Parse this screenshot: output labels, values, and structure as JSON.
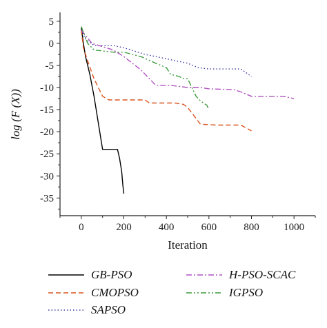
{
  "chart_data": {
    "type": "line",
    "xlabel": "Iteration",
    "ylabel": "log (F (X))",
    "xlim": [
      -100,
      1100
    ],
    "ylim": [
      -39,
      7
    ],
    "xticks": [
      0,
      200,
      400,
      600,
      800,
      1000
    ],
    "yticks": [
      5,
      0,
      -5,
      -10,
      -15,
      -20,
      -25,
      -30,
      -35
    ],
    "grid": false,
    "legend_position": "bottom",
    "series": [
      {
        "name": "GB-PSO",
        "color": "#000000",
        "dash": "solid",
        "points": [
          [
            0,
            3.5
          ],
          [
            10,
            0
          ],
          [
            20,
            -3
          ],
          [
            40,
            -7
          ],
          [
            60,
            -12
          ],
          [
            80,
            -18
          ],
          [
            100,
            -24
          ],
          [
            120,
            -24
          ],
          [
            140,
            -24
          ],
          [
            160,
            -24
          ],
          [
            170,
            -24
          ],
          [
            180,
            -26
          ],
          [
            190,
            -29
          ],
          [
            195,
            -32
          ],
          [
            200,
            -34
          ]
        ]
      },
      {
        "name": "CMOPSO",
        "color": "#d9531e",
        "dash": "dashed",
        "points": [
          [
            0,
            3
          ],
          [
            10,
            -1
          ],
          [
            30,
            -4
          ],
          [
            60,
            -8
          ],
          [
            100,
            -12
          ],
          [
            130,
            -12.8
          ],
          [
            200,
            -12.8
          ],
          [
            300,
            -12.8
          ],
          [
            320,
            -13.5
          ],
          [
            440,
            -13.5
          ],
          [
            480,
            -13.8
          ],
          [
            500,
            -14.5
          ],
          [
            540,
            -17
          ],
          [
            560,
            -18.3
          ],
          [
            640,
            -18.5
          ],
          [
            750,
            -18.5
          ],
          [
            800,
            -19.8
          ]
        ]
      },
      {
        "name": "SAPSO",
        "color": "#3a3aa0",
        "dash": "dotted",
        "points": [
          [
            0,
            3
          ],
          [
            20,
            1
          ],
          [
            60,
            -0.5
          ],
          [
            150,
            -0.5
          ],
          [
            200,
            -1
          ],
          [
            300,
            -2.5
          ],
          [
            400,
            -3.5
          ],
          [
            500,
            -4.5
          ],
          [
            550,
            -5.5
          ],
          [
            600,
            -5.8
          ],
          [
            650,
            -5.8
          ],
          [
            750,
            -5.8
          ],
          [
            800,
            -7.5
          ]
        ]
      },
      {
        "name": "H-PSO-SCAC",
        "color": "#b050c0",
        "dash": "dashdot",
        "points": [
          [
            0,
            3
          ],
          [
            50,
            0
          ],
          [
            150,
            -1.5
          ],
          [
            200,
            -3
          ],
          [
            280,
            -6
          ],
          [
            320,
            -8
          ],
          [
            350,
            -9.5
          ],
          [
            420,
            -9.5
          ],
          [
            500,
            -10
          ],
          [
            560,
            -10
          ],
          [
            600,
            -10.3
          ],
          [
            720,
            -10.5
          ],
          [
            750,
            -11
          ],
          [
            800,
            -12
          ],
          [
            950,
            -12
          ],
          [
            1000,
            -12.5
          ]
        ]
      },
      {
        "name": "IGPSO",
        "color": "#3c9a3c",
        "dash": "dashdotdot",
        "points": [
          [
            0,
            3.8
          ],
          [
            30,
            0
          ],
          [
            60,
            -1.5
          ],
          [
            150,
            -2
          ],
          [
            200,
            -2
          ],
          [
            280,
            -3
          ],
          [
            350,
            -4.5
          ],
          [
            400,
            -5.5
          ],
          [
            420,
            -7
          ],
          [
            460,
            -7.5
          ],
          [
            480,
            -8
          ],
          [
            500,
            -8
          ],
          [
            520,
            -10
          ],
          [
            540,
            -12
          ],
          [
            560,
            -13
          ],
          [
            590,
            -14
          ],
          [
            600,
            -15
          ]
        ]
      }
    ]
  }
}
